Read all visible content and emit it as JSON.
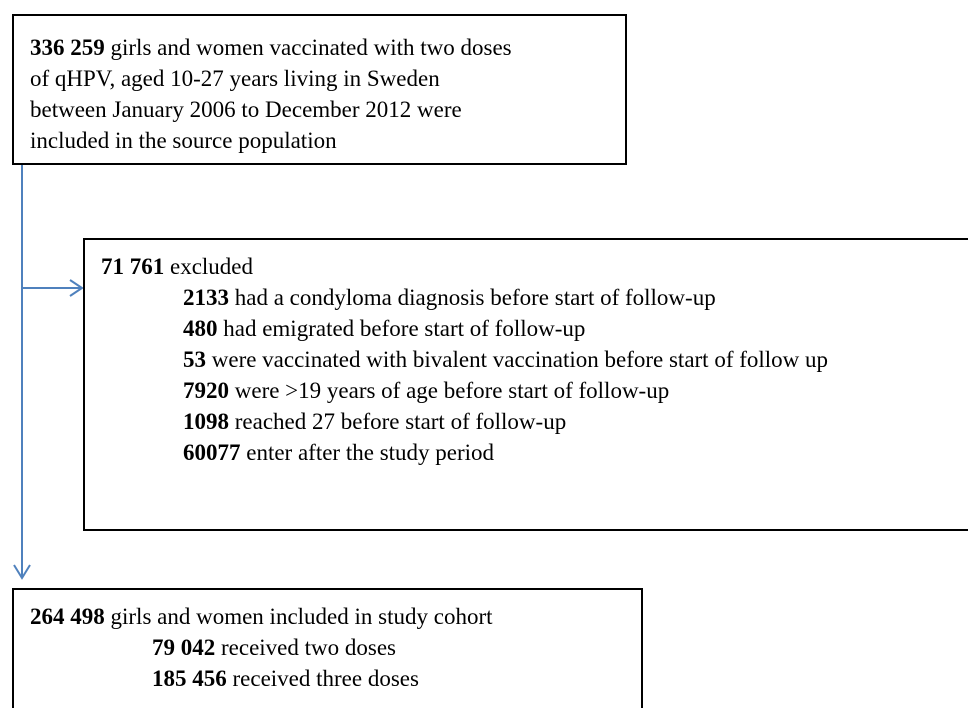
{
  "source": {
    "count": "336 259",
    "lines": [
      "girls and women vaccinated with two doses",
      "of qHPV, aged 10-27 years living in Sweden",
      "between January 2006 to December 2012 were",
      "included in the source population"
    ]
  },
  "excluded": {
    "count": "71 761",
    "label": "excluded",
    "reasons": [
      {
        "count": "2133",
        "text": "had a condyloma diagnosis before start of follow-up"
      },
      {
        "count": "480",
        "text": "had emigrated before start of follow-up"
      },
      {
        "count": "53",
        "text": "were vaccinated with bivalent vaccination before start of follow up"
      },
      {
        "count": "7920",
        "text": "were >19 years of age before start of follow-up"
      },
      {
        "count": "1098",
        "text": "reached 27 before start of follow-up"
      },
      {
        "count": "60077",
        "text": "enter after the study period"
      }
    ]
  },
  "cohort": {
    "count": "264 498",
    "label": "girls and women included in study cohort",
    "groups": [
      {
        "count": "79 042",
        "text": "received two doses"
      },
      {
        "count": "185 456",
        "text": "received three doses"
      }
    ]
  }
}
